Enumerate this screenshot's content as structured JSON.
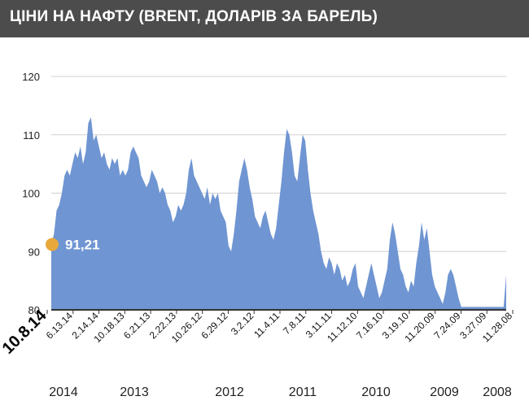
{
  "title": "ЦІНИ НА НАФТУ (BRENT, ДОЛАРІВ ЗА БАРЕЛЬ)",
  "colors": {
    "header_bg": "#4c4c4c",
    "area": "#6f95d2",
    "marker": "#e8a83a"
  },
  "chart_data": {
    "type": "area",
    "ylim": [
      80,
      120
    ],
    "yticks": [
      80,
      90,
      100,
      110,
      120
    ],
    "grid": true,
    "x_direction": "reversed (newest date on the left)",
    "x_tick_labels": [
      "10.8.14",
      "6.13.14",
      "2.14.14",
      "10.18.13",
      "6.21.13",
      "2.22.13",
      "10.26.12",
      "6.29.12",
      "3.2.12",
      "11.4.11",
      "7.8.11",
      "3.11.11",
      "11.12.10",
      "7.16.10",
      "3.19.10",
      "11.20.09",
      "7.24.09",
      "3.27.09",
      "11.28.08"
    ],
    "year_labels": [
      "2014",
      "2013",
      "2012",
      "2011",
      "2010",
      "2009",
      "2008"
    ],
    "annotation": {
      "text": "91,21",
      "value": 91.21
    },
    "values": [
      91.2,
      93,
      97,
      98,
      100,
      103,
      104,
      103,
      105,
      107,
      106,
      108,
      105,
      107,
      112,
      113,
      109,
      110,
      108,
      106,
      107,
      105,
      104,
      106,
      105,
      106,
      103,
      104,
      103,
      104,
      107,
      108,
      107,
      106,
      103,
      102,
      101,
      102,
      104,
      103,
      102,
      100,
      101,
      100,
      98,
      97,
      95,
      96,
      98,
      97,
      98,
      100,
      104,
      106,
      103,
      102,
      101,
      100,
      99,
      101,
      98,
      100,
      99,
      100,
      97,
      96,
      95,
      91,
      90,
      93,
      97,
      102,
      104,
      106,
      104,
      101,
      99,
      96,
      95,
      94,
      96,
      97,
      95,
      93,
      92,
      94,
      98,
      102,
      107,
      111,
      110,
      107,
      103,
      102,
      106,
      110,
      109,
      104,
      100,
      97,
      95,
      93,
      90,
      88,
      87,
      89,
      88,
      86,
      88,
      87,
      85,
      86,
      84,
      85,
      87,
      88,
      84,
      83,
      82,
      84,
      86,
      88,
      86,
      84,
      82,
      83,
      85,
      87,
      92,
      95,
      93,
      90,
      87,
      86,
      84,
      83,
      85,
      84,
      88,
      91,
      95,
      92,
      94,
      90,
      86,
      84,
      83,
      82,
      81,
      83,
      86,
      87,
      86,
      84,
      82,
      80.5,
      80.5,
      80.5,
      80.5,
      80.5,
      80.5,
      80.5,
      80.5,
      80.5,
      80.5,
      80.5,
      80.5,
      80.5,
      80.5,
      80.5,
      80.5,
      80.5,
      86
    ]
  }
}
